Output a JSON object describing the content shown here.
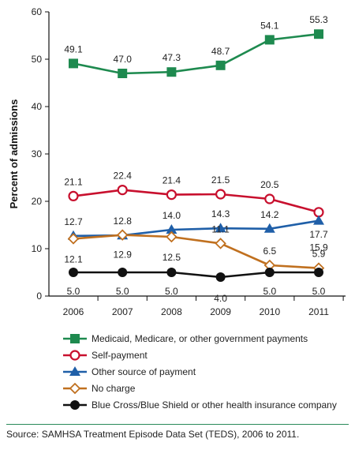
{
  "chart_data": {
    "type": "line",
    "ylabel": "Percent of admissions",
    "xlabel": "",
    "ylim": [
      0,
      60
    ],
    "yticks": [
      0,
      10,
      20,
      30,
      40,
      50,
      60
    ],
    "x": [
      "2006",
      "2007",
      "2008",
      "2009",
      "2010",
      "2011"
    ],
    "grid": false,
    "legend_position": "bottom",
    "series": [
      {
        "key": "medicaid",
        "name": "Medicaid, Medicare, or other government payments",
        "color": "#1e8a4f",
        "marker": "square",
        "values": [
          49.1,
          47.0,
          47.3,
          48.7,
          54.1,
          55.3
        ],
        "labels": [
          "49.1",
          "47.0",
          "47.3",
          "48.7",
          "54.1",
          "55.3"
        ]
      },
      {
        "key": "self",
        "name": "Self-payment",
        "color": "#c8102e",
        "marker": "circle-open",
        "values": [
          21.1,
          22.4,
          21.4,
          21.5,
          20.5,
          17.7
        ],
        "labels": [
          "21.1",
          "22.4",
          "21.4",
          "21.5",
          "20.5",
          "17.7"
        ]
      },
      {
        "key": "other",
        "name": "Other source of payment",
        "color": "#1f5fa8",
        "marker": "triangle",
        "values": [
          12.7,
          12.8,
          14.0,
          14.3,
          14.2,
          15.9
        ],
        "labels": [
          "12.7",
          "12.8",
          "14.0",
          "14.3",
          "14.2",
          "15.9"
        ]
      },
      {
        "key": "nocharge",
        "name": "No charge",
        "color": "#c0701f",
        "marker": "diamond-open",
        "values": [
          12.1,
          12.9,
          12.5,
          11.1,
          6.5,
          5.9
        ],
        "labels": [
          "12.1",
          "12.9",
          "12.5",
          "11.1",
          "6.5",
          "5.9"
        ]
      },
      {
        "key": "bcbs",
        "name": "Blue Cross/Blue Shield or other health insurance company",
        "color": "#111111",
        "marker": "circle",
        "values": [
          5.0,
          5.0,
          5.0,
          4.0,
          5.0,
          5.0
        ],
        "labels": [
          "5.0",
          "5.0",
          "5.0",
          "4.0",
          "5.0",
          "5.0"
        ]
      }
    ]
  },
  "source": "Source: SAMHSA Treatment Episode Data Set (TEDS), 2006 to 2011."
}
